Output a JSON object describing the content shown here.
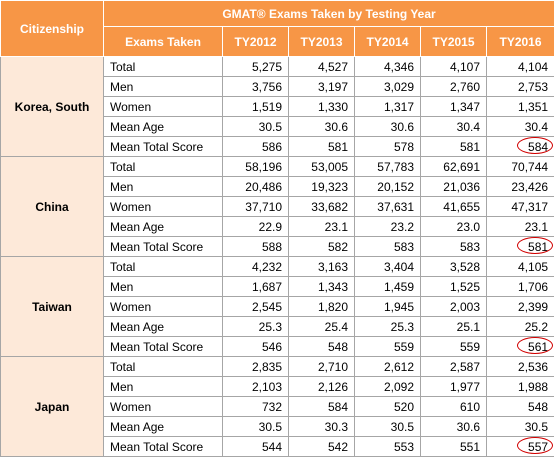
{
  "header": {
    "citizenship": "Citizenship",
    "title": "GMAT® Exams Taken by Testing Year",
    "exams_taken": "Exams Taken",
    "years": [
      "TY2012",
      "TY2013",
      "TY2014",
      "TY2015",
      "TY2016"
    ]
  },
  "groups": [
    {
      "country": "Korea, South",
      "rows": [
        {
          "label": "Total",
          "values": [
            "5,275",
            "4,527",
            "4,346",
            "4,107",
            "4,104"
          ]
        },
        {
          "label": "Men",
          "values": [
            "3,756",
            "3,197",
            "3,029",
            "2,760",
            "2,753"
          ]
        },
        {
          "label": "Women",
          "values": [
            "1,519",
            "1,330",
            "1,317",
            "1,347",
            "1,351"
          ]
        },
        {
          "label": "Mean Age",
          "values": [
            "30.5",
            "30.6",
            "30.6",
            "30.4",
            "30.4"
          ]
        },
        {
          "label": "Mean Total Score",
          "values": [
            "586",
            "581",
            "578",
            "581",
            "584"
          ]
        }
      ]
    },
    {
      "country": "China",
      "rows": [
        {
          "label": "Total",
          "values": [
            "58,196",
            "53,005",
            "57,783",
            "62,691",
            "70,744"
          ]
        },
        {
          "label": "Men",
          "values": [
            "20,486",
            "19,323",
            "20,152",
            "21,036",
            "23,426"
          ]
        },
        {
          "label": "Women",
          "values": [
            "37,710",
            "33,682",
            "37,631",
            "41,655",
            "47,317"
          ]
        },
        {
          "label": "Mean Age",
          "values": [
            "22.9",
            "23.1",
            "23.2",
            "23.0",
            "23.1"
          ]
        },
        {
          "label": "Mean Total Score",
          "values": [
            "588",
            "582",
            "583",
            "583",
            "581"
          ]
        }
      ]
    },
    {
      "country": "Taiwan",
      "rows": [
        {
          "label": "Total",
          "values": [
            "4,232",
            "3,163",
            "3,404",
            "3,528",
            "4,105"
          ]
        },
        {
          "label": "Men",
          "values": [
            "1,687",
            "1,343",
            "1,459",
            "1,525",
            "1,706"
          ]
        },
        {
          "label": "Women",
          "values": [
            "2,545",
            "1,820",
            "1,945",
            "2,003",
            "2,399"
          ]
        },
        {
          "label": "Mean Age",
          "values": [
            "25.3",
            "25.4",
            "25.3",
            "25.1",
            "25.2"
          ]
        },
        {
          "label": "Mean Total Score",
          "values": [
            "546",
            "548",
            "559",
            "559",
            "561"
          ]
        }
      ]
    },
    {
      "country": "Japan",
      "rows": [
        {
          "label": "Total",
          "values": [
            "2,835",
            "2,710",
            "2,612",
            "2,587",
            "2,536"
          ]
        },
        {
          "label": "Men",
          "values": [
            "2,103",
            "2,126",
            "2,092",
            "1,977",
            "1,988"
          ]
        },
        {
          "label": "Women",
          "values": [
            "732",
            "584",
            "520",
            "610",
            "548"
          ]
        },
        {
          "label": "Mean Age",
          "values": [
            "30.5",
            "30.3",
            "30.5",
            "30.6",
            "30.5"
          ]
        },
        {
          "label": "Mean Total Score",
          "values": [
            "544",
            "542",
            "553",
            "551",
            "557"
          ]
        }
      ]
    }
  ]
}
